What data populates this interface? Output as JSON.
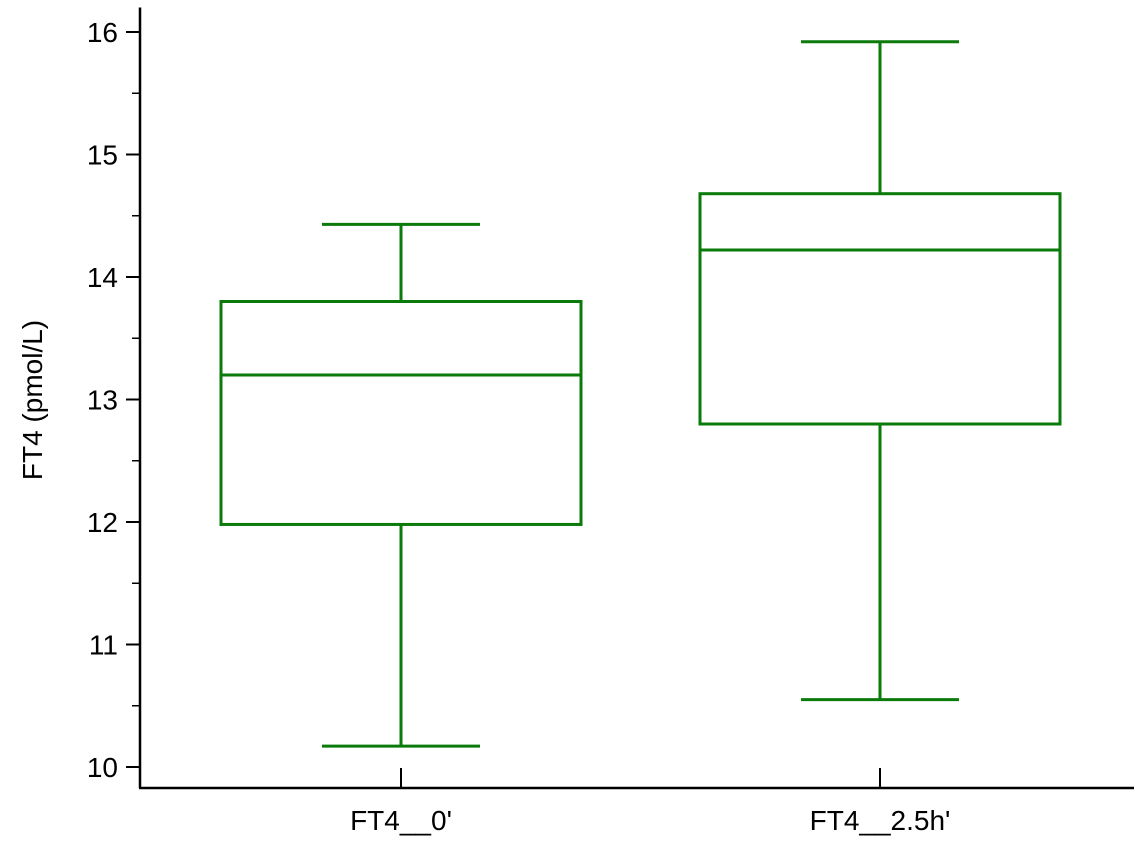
{
  "chart_data": {
    "type": "box",
    "ylabel": "FT4 (pmol/L)",
    "xlabel": "",
    "ylim": [
      9.8,
      16.2
    ],
    "y_ticks": [
      10,
      11,
      12,
      13,
      14,
      15,
      16
    ],
    "categories": [
      "FT4__0'",
      "FT4__2.5h'"
    ],
    "boxes": [
      {
        "category": "FT4__0'",
        "whisker_low": 10.17,
        "q1": 11.98,
        "median": 13.2,
        "q3": 13.8,
        "whisker_high": 14.43
      },
      {
        "category": "FT4__2.5h'",
        "whisker_low": 10.55,
        "q1": 12.8,
        "median": 14.22,
        "q3": 14.68,
        "whisker_high": 15.92
      }
    ],
    "grid": false,
    "legend": "none",
    "color": "#0a7a0a"
  }
}
